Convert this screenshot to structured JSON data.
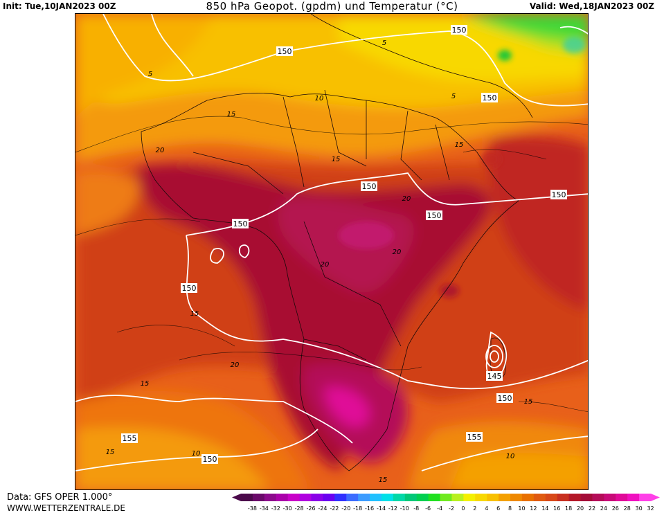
{
  "header": {
    "init": "Init: Tue,10JAN2023 00Z",
    "title": "850 hPa Geopot. (gpdm) und Temperatur (°C)",
    "valid": "Valid: Wed,18JAN2023 00Z"
  },
  "footer": {
    "data_source": "Data: GFS OPER 1.000°",
    "website": "WWW.WETTERZENTRALE.DE"
  },
  "geopotential_labels": [
    "150",
    "150",
    "150",
    "150",
    "150",
    "150",
    "150",
    "145",
    "150",
    "155",
    "155",
    "150",
    "150"
  ],
  "temperature_labels": [
    "5",
    "5",
    "10",
    "5",
    "15",
    "20",
    "15",
    "20",
    "15",
    "20",
    "20",
    "15",
    "15",
    "20",
    "15",
    "10",
    "10",
    "15",
    "15"
  ],
  "legend": {
    "values": [
      "-38",
      "-34",
      "-32",
      "-30",
      "-28",
      "-26",
      "-24",
      "-22",
      "-20",
      "-18",
      "-16",
      "-14",
      "-12",
      "-10",
      "-8",
      "-6",
      "-4",
      "-2",
      "0",
      "2",
      "4",
      "6",
      "8",
      "10",
      "12",
      "14",
      "16",
      "18",
      "20",
      "22",
      "24",
      "26",
      "28",
      "30",
      "32"
    ],
    "colors": [
      "#4b0a4b",
      "#6a0a6a",
      "#8c0a8c",
      "#aa00aa",
      "#c800c8",
      "#b000e0",
      "#8a00e8",
      "#6a00f0",
      "#3030ff",
      "#3c6cff",
      "#3c9cff",
      "#20c0ff",
      "#00e0e8",
      "#00d8a8",
      "#00c878",
      "#00d050",
      "#20e020",
      "#70ea20",
      "#b8f020",
      "#f4f000",
      "#f8d800",
      "#f8c000",
      "#f4a000",
      "#ee8800",
      "#e87000",
      "#e05a10",
      "#d84818",
      "#c83020",
      "#b41828",
      "#a40c38",
      "#b40c58",
      "#c80a78",
      "#e00a98",
      "#f010c0",
      "#ff40e8"
    ]
  }
}
